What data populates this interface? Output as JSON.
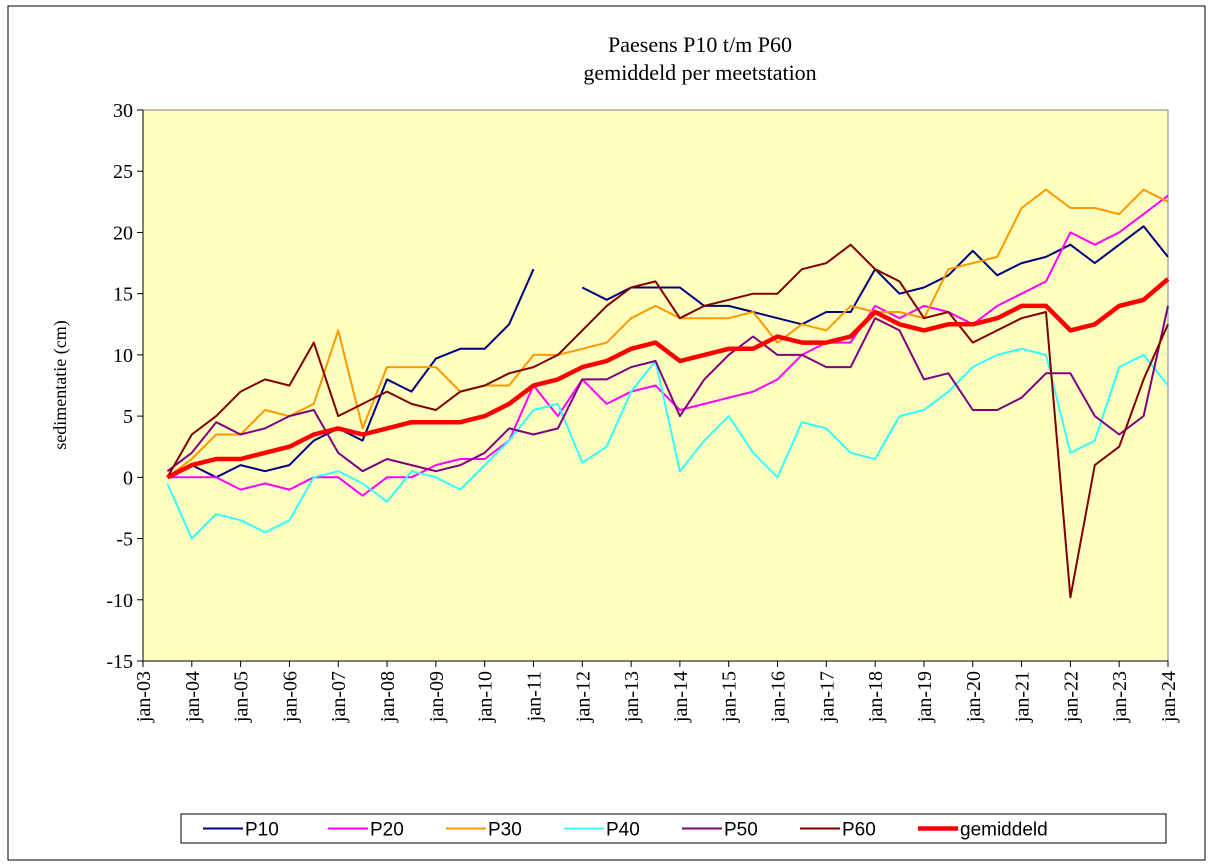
{
  "chart_data": {
    "type": "line",
    "title": "Paesens P10 t/m P60",
    "subtitle": "gemiddeld per meetstation",
    "y_label": "sedimentatie (cm)",
    "x": [
      "2003-07",
      "2004-01",
      "2004-07",
      "2005-01",
      "2005-07",
      "2006-01",
      "2006-07",
      "2007-01",
      "2007-07",
      "2008-01",
      "2008-07",
      "2009-01",
      "2009-07",
      "2010-01",
      "2010-07",
      "2011-01",
      "2011-07",
      "2012-01",
      "2012-07",
      "2013-01",
      "2013-07",
      "2014-01",
      "2014-07",
      "2015-01",
      "2015-07",
      "2016-01",
      "2016-07",
      "2017-01",
      "2017-07",
      "2018-01",
      "2018-07",
      "2019-01",
      "2019-07",
      "2020-01",
      "2020-07",
      "2021-01",
      "2021-07",
      "2022-01",
      "2022-07",
      "2023-01",
      "2023-07",
      "2024-01"
    ],
    "series": [
      {
        "name": "P10",
        "color": "#000080",
        "values": [
          0,
          1,
          0,
          1,
          0.5,
          1,
          3,
          4,
          3,
          8,
          7,
          9.7,
          10.5,
          10.5,
          12.5,
          17,
          null,
          15.5,
          14.5,
          15.5,
          15.5,
          15.5,
          14,
          14,
          13.5,
          13,
          12.5,
          13.5,
          13.5,
          17,
          15,
          15.5,
          16.5,
          18.5,
          16.5,
          17.5,
          18,
          19,
          17.5,
          19,
          20.5,
          18
        ]
      },
      {
        "name": "P20",
        "color": "#ff00ff",
        "values": [
          0,
          0,
          0,
          -1,
          -0.5,
          -1,
          0,
          0,
          -1.5,
          0,
          0,
          1,
          1.5,
          1.5,
          3,
          7.5,
          5,
          8,
          6,
          7,
          7.5,
          5.5,
          6,
          6.5,
          7,
          8,
          10,
          11,
          11,
          14,
          13,
          14,
          13.5,
          12.5,
          14,
          15,
          16,
          20,
          19,
          20,
          21.5,
          23
        ]
      },
      {
        "name": "P30",
        "color": "#ff9900",
        "values": [
          0,
          1.5,
          3.5,
          3.5,
          5.5,
          5,
          6,
          12,
          4,
          9,
          9,
          9,
          7,
          7.5,
          7.5,
          10,
          10,
          10.5,
          11,
          13,
          14,
          13,
          13,
          13,
          13.5,
          11,
          12.5,
          12,
          14,
          13.5,
          13.5,
          13,
          17,
          17.5,
          18,
          22,
          23.5,
          22,
          22,
          21.5,
          23.5,
          22.5
        ]
      },
      {
        "name": "P40",
        "color": "#33ffff",
        "values": [
          -0.5,
          -5,
          -3,
          -3.5,
          -4.5,
          -3.5,
          0,
          0.5,
          -0.5,
          -2,
          0.5,
          0,
          -1,
          1,
          3,
          5.5,
          6,
          1.2,
          2.5,
          7,
          9.5,
          0.5,
          3,
          5,
          2,
          0,
          4.5,
          4,
          2,
          1.5,
          5,
          5.5,
          7,
          9,
          10,
          10.5,
          10,
          2,
          3,
          9,
          10,
          7.5
        ]
      },
      {
        "name": "P50",
        "color": "#800080",
        "values": [
          0.5,
          2,
          4.5,
          3.5,
          4,
          5,
          5.5,
          2,
          0.5,
          1.5,
          1,
          0.5,
          1,
          2,
          4,
          3.5,
          4,
          8,
          8,
          9,
          9.5,
          5,
          8,
          10,
          11.5,
          10,
          10,
          9,
          9,
          13,
          12,
          8,
          8.5,
          5.5,
          5.5,
          6.5,
          8.5,
          8.5,
          5,
          3.5,
          5,
          14
        ]
      },
      {
        "name": "P60",
        "color": "#800000",
        "values": [
          0,
          3.5,
          5,
          7,
          8,
          7.5,
          11,
          5,
          6,
          7,
          6,
          5.5,
          7,
          7.5,
          8.5,
          9,
          10,
          12,
          14,
          15.5,
          16,
          13,
          14,
          14.5,
          15,
          15,
          17,
          17.5,
          19,
          17,
          16,
          13,
          13.5,
          11,
          12,
          13,
          13.5,
          -9.8,
          1,
          2.5,
          8,
          12.5
        ]
      },
      {
        "name": "gemiddeld",
        "color": "#ff0000",
        "values": [
          0,
          1,
          1.5,
          1.5,
          2,
          2.5,
          3.5,
          4,
          3.5,
          4,
          4.5,
          4.5,
          4.5,
          5,
          6,
          7.5,
          8,
          9,
          9.5,
          10.5,
          11,
          9.5,
          10,
          10.5,
          10.5,
          11.5,
          11,
          11,
          11.5,
          13.5,
          12.5,
          12,
          12.5,
          12.5,
          13,
          14,
          14,
          12,
          12.5,
          14,
          14.5,
          16.2
        ]
      }
    ],
    "xlim": [
      "2003-01",
      "2024-01"
    ],
    "xticks": [
      {
        "value": "2003-01",
        "label": "jan-03"
      },
      {
        "value": "2004-01",
        "label": "jan-04"
      },
      {
        "value": "2005-01",
        "label": "jan-05"
      },
      {
        "value": "2006-01",
        "label": "jan-06"
      },
      {
        "value": "2007-01",
        "label": "jan-07"
      },
      {
        "value": "2008-01",
        "label": "jan-08"
      },
      {
        "value": "2009-01",
        "label": "jan-09"
      },
      {
        "value": "2010-01",
        "label": "jan-10"
      },
      {
        "value": "2011-01",
        "label": "jan-11"
      },
      {
        "value": "2012-01",
        "label": "jan-12"
      },
      {
        "value": "2013-01",
        "label": "jan-13"
      },
      {
        "value": "2014-01",
        "label": "jan-14"
      },
      {
        "value": "2015-01",
        "label": "jan-15"
      },
      {
        "value": "2016-01",
        "label": "jan-16"
      },
      {
        "value": "2017-01",
        "label": "jan-17"
      },
      {
        "value": "2018-01",
        "label": "jan-18"
      },
      {
        "value": "2019-01",
        "label": "jan-19"
      },
      {
        "value": "2020-01",
        "label": "jan-20"
      },
      {
        "value": "2021-01",
        "label": "jan-21"
      },
      {
        "value": "2022-01",
        "label": "jan-22"
      },
      {
        "value": "2023-01",
        "label": "jan-23"
      },
      {
        "value": "2024-01",
        "label": "jan-24"
      }
    ],
    "ylim": [
      -15,
      30
    ],
    "yticks": [
      -15,
      -10,
      -5,
      0,
      5,
      10,
      15,
      20,
      25,
      30
    ],
    "plot_background": "#ffffc0",
    "legend": "bottom"
  }
}
